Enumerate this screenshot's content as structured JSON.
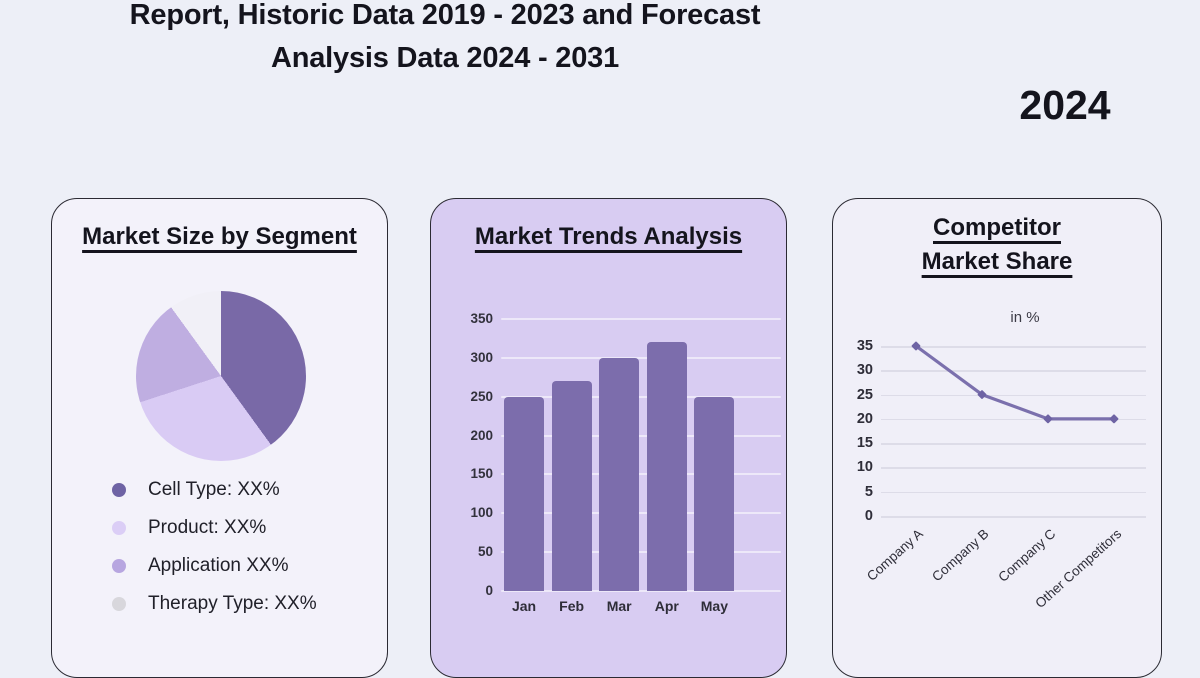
{
  "header": {
    "title_line1": "Report, Historic Data 2019 - 2023 and Forecast",
    "title_line2": "Analysis Data 2024 - 2031",
    "year": "2024"
  },
  "cards": {
    "market_size": {
      "title": "Market Size by Segment",
      "legend": [
        {
          "label": "Cell Type: XX%",
          "color": "#6f5ea6"
        },
        {
          "label": "Product: XX%",
          "color": "#dbcef6"
        },
        {
          "label": "Application XX%",
          "color": "#b7a6e0"
        },
        {
          "label": "Therapy Type: XX%",
          "color": "#d8d7dc"
        }
      ]
    },
    "market_trends": {
      "title": "Market Trends Analysis"
    },
    "competitor_share": {
      "title_line1": "Competitor",
      "title_line2": "Market Share",
      "legend_label": "in %"
    }
  },
  "chart_data": [
    {
      "type": "pie",
      "title": "Market Size by Segment",
      "labels": [
        "Cell Type",
        "Product",
        "Application",
        "Therapy Type"
      ],
      "values_pct": [
        40,
        30,
        20,
        10
      ],
      "display_values": [
        "XX%",
        "XX%",
        "XX%",
        "XX%"
      ],
      "colors": [
        "#7969a7",
        "#d9cbf4",
        "#bfaee1",
        "#f1f0f7"
      ],
      "legend_position": "bottom"
    },
    {
      "type": "bar",
      "title": "Market Trends Analysis",
      "categories": [
        "Jan",
        "Feb",
        "Mar",
        "Apr",
        "May"
      ],
      "values": [
        250,
        270,
        300,
        320,
        250
      ],
      "ylim": [
        0,
        350
      ],
      "ytick_step": 50,
      "bar_color": "#7c6dac",
      "grid": true
    },
    {
      "type": "line",
      "title": "Competitor Market Share",
      "categories": [
        "Company A",
        "Company B",
        "Company C",
        "Other Competitors"
      ],
      "series": [
        {
          "name": "in %",
          "values": [
            35,
            25,
            20,
            20
          ]
        }
      ],
      "ylim": [
        0,
        35
      ],
      "ytick_step": 5,
      "line_color": "#7b70ad",
      "marker_color": "#6e63a4",
      "grid": true,
      "legend_position": "top"
    }
  ]
}
